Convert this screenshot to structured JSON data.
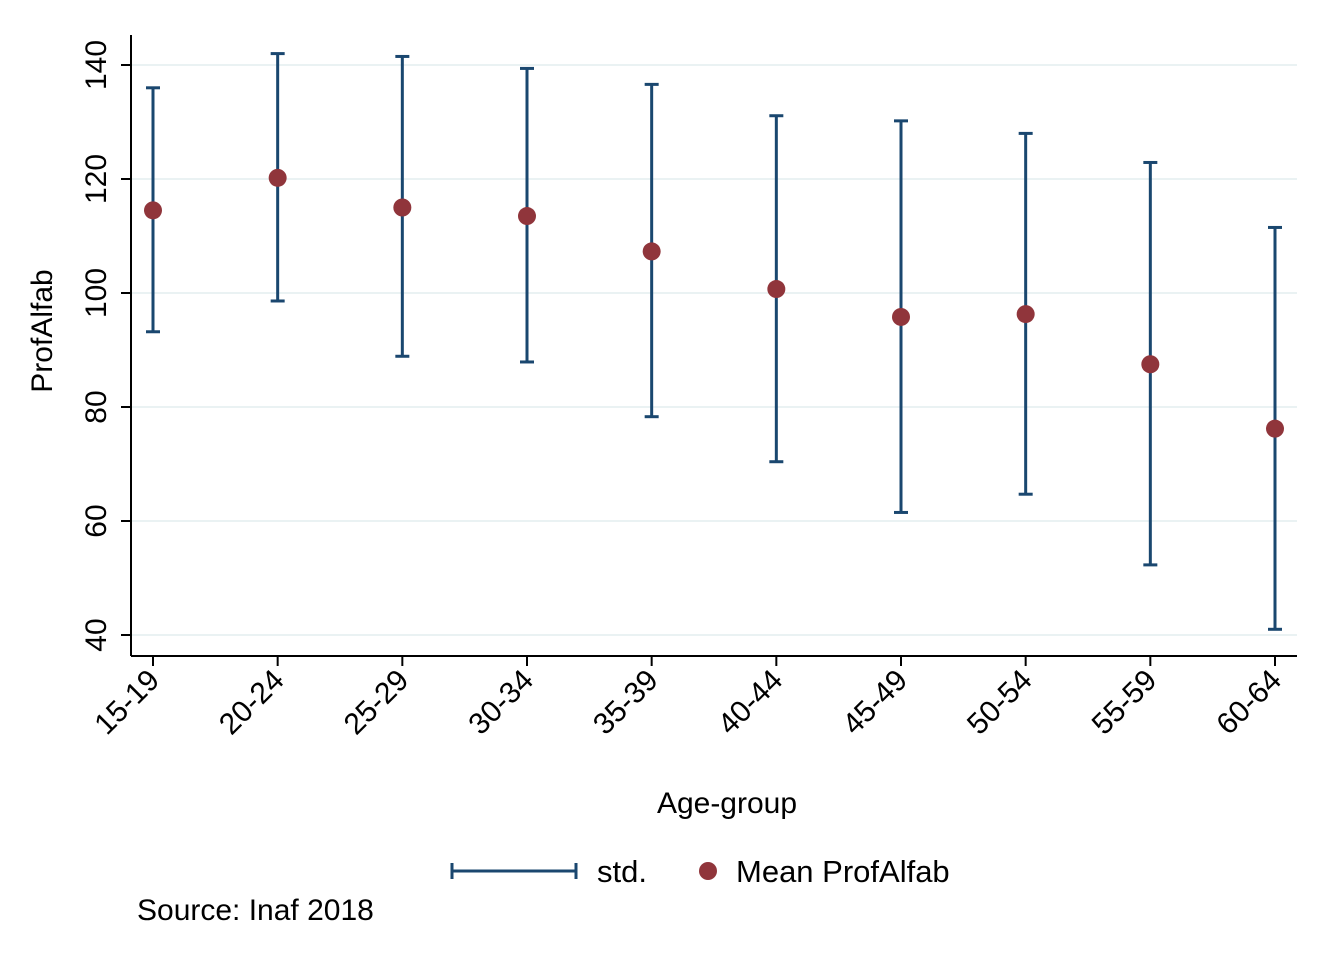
{
  "chart_data": {
    "type": "scatter",
    "categories": [
      "15-19",
      "20-24",
      "25-29",
      "30-34",
      "35-39",
      "40-44",
      "45-49",
      "50-54",
      "55-59",
      "60-64"
    ],
    "series": [
      {
        "name": "Mean ProfAlfab",
        "kind": "point",
        "color": "#90353b",
        "values": [
          114.5,
          120.2,
          115.0,
          113.5,
          107.3,
          100.7,
          95.8,
          96.3,
          87.5,
          76.2
        ]
      },
      {
        "name": "std.",
        "kind": "errorbar",
        "color": "#1a476f",
        "lower": [
          93.2,
          98.6,
          88.9,
          87.9,
          78.3,
          70.4,
          61.5,
          64.7,
          52.3,
          41.0
        ],
        "upper": [
          136.0,
          142.0,
          141.5,
          139.4,
          136.6,
          131.1,
          130.2,
          128.0,
          122.9,
          111.5
        ]
      }
    ],
    "xlabel": "Age-group",
    "ylabel": "ProfAlfab",
    "ylim": [
      37,
      147
    ],
    "yticks": [
      40,
      60,
      80,
      100,
      120,
      140
    ],
    "grid": true,
    "legend_position": "bottom",
    "note": "Source: Inaf 2018"
  }
}
